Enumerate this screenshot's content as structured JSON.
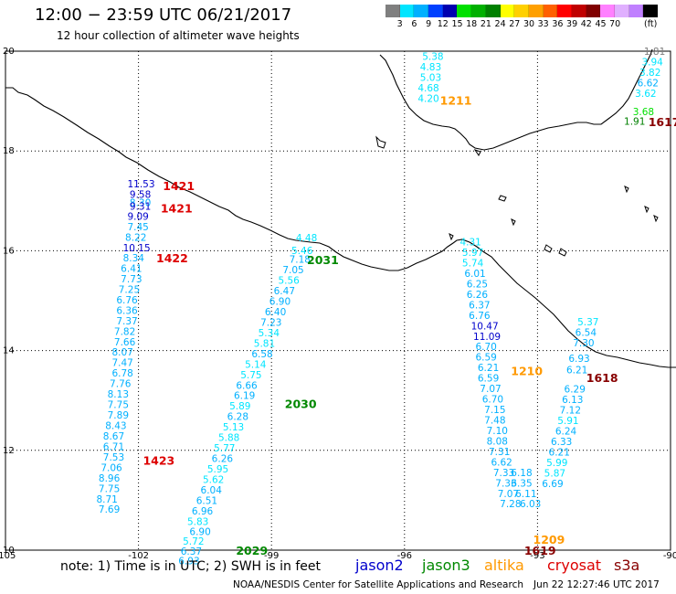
{
  "header": {
    "title": "12:00 − 23:59 UTC 06/21/2017",
    "subtitle": "12 hour collection of altimeter wave heights"
  },
  "legend": {
    "unit_label": "(ft)",
    "colors": [
      "#7f7f7f",
      "#00e5ff",
      "#00b0ff",
      "#0040ff",
      "#0000b0",
      "#00e000",
      "#00b000",
      "#008000",
      "#ffff00",
      "#ffd000",
      "#ffa000",
      "#ff6000",
      "#ff0000",
      "#c00000",
      "#800000",
      "#ff80ff",
      "#e0b0ff",
      "#c080ff",
      "#000000"
    ],
    "labels": [
      "3",
      "6",
      "9",
      "12",
      "15",
      "18",
      "21",
      "24",
      "27",
      "30",
      "33",
      "36",
      "39",
      "42",
      "45",
      "70"
    ]
  },
  "axes": {
    "x_ticks": [
      "-105",
      "-102",
      "-99",
      "-96",
      "-93",
      "-90"
    ],
    "y_ticks": [
      "20",
      "18",
      "16",
      "14",
      "12",
      "10"
    ]
  },
  "satellites": [
    {
      "name": "jason2",
      "color": "#0000cc"
    },
    {
      "name": "jason3",
      "color": "#008800"
    },
    {
      "name": "altika",
      "color": "#ff9900"
    },
    {
      "name": "cryosat",
      "color": "#dd0000"
    },
    {
      "name": "s3a",
      "color": "#880000"
    }
  ],
  "note": "note: 1) Time is in UTC; 2) SWH is in feet",
  "credit": "NOAA/NESDIS Center for Satellite Applications and Research",
  "generated": "Jun 22 12:27:46 UTC 2017",
  "pass_labels": [
    {
      "text": "1421",
      "color": "#dd0000",
      "lon": -101.45,
      "lat": 17.31
    },
    {
      "text": "1421",
      "color": "#dd0000",
      "lon": -101.5,
      "lat": 16.86
    },
    {
      "text": "1422",
      "color": "#dd0000",
      "lon": -101.6,
      "lat": 15.86
    },
    {
      "text": "1423",
      "color": "#dd0000",
      "lon": -101.9,
      "lat": 11.8
    },
    {
      "text": "2031",
      "color": "#008800",
      "lon": -98.2,
      "lat": 15.82
    },
    {
      "text": "2030",
      "color": "#008800",
      "lon": -98.7,
      "lat": 12.94
    },
    {
      "text": "2029",
      "color": "#008800",
      "lon": -99.8,
      "lat": 10.0
    },
    {
      "text": "1211",
      "color": "#ff9900",
      "lon": -95.2,
      "lat": 19.02
    },
    {
      "text": "1210",
      "color": "#ff9900",
      "lon": -93.6,
      "lat": 13.6
    },
    {
      "text": "1209",
      "color": "#ff9900",
      "lon": -93.1,
      "lat": 10.22
    },
    {
      "text": "1619",
      "color": "#880000",
      "lon": -93.3,
      "lat": 10.0
    },
    {
      "text": "1617",
      "color": "#880000",
      "lon": -90.5,
      "lat": 18.59
    },
    {
      "text": "1618",
      "color": "#880000",
      "lon": -91.9,
      "lat": 13.46
    }
  ],
  "tracks": [
    {
      "points": [
        {
          "v": "11.53",
          "c": "#0000cc",
          "lon": -102.25,
          "lat": 17.34
        },
        {
          "v": "9.58",
          "c": "#0000cc",
          "lon": -102.2,
          "lat": 17.13
        },
        {
          "v": "8.30",
          "c": "#00b0ff",
          "lon": -102.2,
          "lat": 16.97
        },
        {
          "v": "9.31",
          "c": "#0000cc",
          "lon": -102.2,
          "lat": 16.9
        },
        {
          "v": "9.09",
          "c": "#0000cc",
          "lon": -102.25,
          "lat": 16.69
        },
        {
          "v": "7.45",
          "c": "#00b0ff",
          "lon": -102.25,
          "lat": 16.48
        },
        {
          "v": "8.22",
          "c": "#00b0ff",
          "lon": -102.3,
          "lat": 16.27
        },
        {
          "v": "10.15",
          "c": "#0000cc",
          "lon": -102.35,
          "lat": 16.06
        },
        {
          "v": "8.34",
          "c": "#00b0ff",
          "lon": -102.35,
          "lat": 15.86
        },
        {
          "v": "6.41",
          "c": "#00b0ff",
          "lon": -102.4,
          "lat": 15.65
        },
        {
          "v": "7.73",
          "c": "#00b0ff",
          "lon": -102.4,
          "lat": 15.44
        },
        {
          "v": "7.25",
          "c": "#00b0ff",
          "lon": -102.45,
          "lat": 15.23
        },
        {
          "v": "6.76",
          "c": "#00b0ff",
          "lon": -102.5,
          "lat": 15.02
        },
        {
          "v": "6.36",
          "c": "#00b0ff",
          "lon": -102.5,
          "lat": 14.81
        },
        {
          "v": "7.37",
          "c": "#00b0ff",
          "lon": -102.5,
          "lat": 14.6
        },
        {
          "v": "7.82",
          "c": "#00b0ff",
          "lon": -102.55,
          "lat": 14.39
        },
        {
          "v": "7.66",
          "c": "#00b0ff",
          "lon": -102.55,
          "lat": 14.18
        },
        {
          "v": "8.07",
          "c": "#00b0ff",
          "lon": -102.6,
          "lat": 13.97
        },
        {
          "v": "7.47",
          "c": "#00b0ff",
          "lon": -102.6,
          "lat": 13.76
        },
        {
          "v": "6.78",
          "c": "#00b0ff",
          "lon": -102.6,
          "lat": 13.55
        },
        {
          "v": "7.76",
          "c": "#00b0ff",
          "lon": -102.65,
          "lat": 13.34
        },
        {
          "v": "8.13",
          "c": "#00b0ff",
          "lon": -102.7,
          "lat": 13.13
        },
        {
          "v": "7.75",
          "c": "#00b0ff",
          "lon": -102.7,
          "lat": 12.92
        },
        {
          "v": "7.89",
          "c": "#00b0ff",
          "lon": -102.7,
          "lat": 12.71
        },
        {
          "v": "8.43",
          "c": "#00b0ff",
          "lon": -102.75,
          "lat": 12.5
        },
        {
          "v": "8.67",
          "c": "#00b0ff",
          "lon": -102.8,
          "lat": 12.29
        },
        {
          "v": "6.71",
          "c": "#00b0ff",
          "lon": -102.8,
          "lat": 12.08
        },
        {
          "v": "7.53",
          "c": "#00b0ff",
          "lon": -102.8,
          "lat": 11.87
        },
        {
          "v": "7.06",
          "c": "#00b0ff",
          "lon": -102.85,
          "lat": 11.66
        },
        {
          "v": "8.96",
          "c": "#00b0ff",
          "lon": -102.9,
          "lat": 11.45
        },
        {
          "v": "7.75",
          "c": "#00b0ff",
          "lon": -102.9,
          "lat": 11.24
        },
        {
          "v": "8.71",
          "c": "#00b0ff",
          "lon": -102.95,
          "lat": 11.03
        },
        {
          "v": "7.69",
          "c": "#00b0ff",
          "lon": -102.9,
          "lat": 10.82
        }
      ]
    },
    {
      "points": [
        {
          "v": "4.48",
          "c": "#00e5ff",
          "lon": -98.45,
          "lat": 16.26
        },
        {
          "v": "5.46",
          "c": "#00e5ff",
          "lon": -98.55,
          "lat": 16.01
        },
        {
          "v": "7.18",
          "c": "#00b0ff",
          "lon": -98.6,
          "lat": 15.83
        },
        {
          "v": "7.05",
          "c": "#00b0ff",
          "lon": -98.75,
          "lat": 15.62
        },
        {
          "v": "5.56",
          "c": "#00e5ff",
          "lon": -98.85,
          "lat": 15.41
        },
        {
          "v": "6.47",
          "c": "#00b0ff",
          "lon": -98.95,
          "lat": 15.2
        },
        {
          "v": "6.90",
          "c": "#00b0ff",
          "lon": -99.05,
          "lat": 14.99
        },
        {
          "v": "6.40",
          "c": "#00b0ff",
          "lon": -99.15,
          "lat": 14.78
        },
        {
          "v": "7.23",
          "c": "#00b0ff",
          "lon": -99.25,
          "lat": 14.57
        },
        {
          "v": "5.34",
          "c": "#00e5ff",
          "lon": -99.3,
          "lat": 14.36
        },
        {
          "v": "5.81",
          "c": "#00e5ff",
          "lon": -99.4,
          "lat": 14.15
        },
        {
          "v": "6.58",
          "c": "#00b0ff",
          "lon": -99.45,
          "lat": 13.94
        },
        {
          "v": "5.14",
          "c": "#00e5ff",
          "lon": -99.6,
          "lat": 13.73
        },
        {
          "v": "5.75",
          "c": "#00e5ff",
          "lon": -99.7,
          "lat": 13.52
        },
        {
          "v": "6.66",
          "c": "#00b0ff",
          "lon": -99.8,
          "lat": 13.31
        },
        {
          "v": "6.19",
          "c": "#00b0ff",
          "lon": -99.85,
          "lat": 13.1
        },
        {
          "v": "5.89",
          "c": "#00e5ff",
          "lon": -99.95,
          "lat": 12.89
        },
        {
          "v": "6.28",
          "c": "#00b0ff",
          "lon": -100.0,
          "lat": 12.68
        },
        {
          "v": "5.13",
          "c": "#00e5ff",
          "lon": -100.1,
          "lat": 12.47
        },
        {
          "v": "5.88",
          "c": "#00e5ff",
          "lon": -100.2,
          "lat": 12.26
        },
        {
          "v": "5.77",
          "c": "#00e5ff",
          "lon": -100.3,
          "lat": 12.05
        },
        {
          "v": "6.26",
          "c": "#00b0ff",
          "lon": -100.35,
          "lat": 11.84
        },
        {
          "v": "5.95",
          "c": "#00e5ff",
          "lon": -100.45,
          "lat": 11.63
        },
        {
          "v": "5.62",
          "c": "#00e5ff",
          "lon": -100.55,
          "lat": 11.42
        },
        {
          "v": "6.04",
          "c": "#00b0ff",
          "lon": -100.6,
          "lat": 11.21
        },
        {
          "v": "6.51",
          "c": "#00b0ff",
          "lon": -100.7,
          "lat": 11.0
        },
        {
          "v": "6.96",
          "c": "#00b0ff",
          "lon": -100.8,
          "lat": 10.79
        },
        {
          "v": "5.83",
          "c": "#00e5ff",
          "lon": -100.9,
          "lat": 10.58
        },
        {
          "v": "6.90",
          "c": "#00b0ff",
          "lon": -100.85,
          "lat": 10.38
        },
        {
          "v": "5.72",
          "c": "#00e5ff",
          "lon": -101.0,
          "lat": 10.18
        },
        {
          "v": "6.37",
          "c": "#00b0ff",
          "lon": -101.05,
          "lat": 9.98
        },
        {
          "v": "6.93",
          "c": "#00b0ff",
          "lon": -101.1,
          "lat": 9.79
        }
      ]
    },
    {
      "points": [
        {
          "v": "5.38",
          "c": "#00e5ff",
          "lon": -95.6,
          "lat": 19.9
        },
        {
          "v": "4.83",
          "c": "#00e5ff",
          "lon": -95.65,
          "lat": 19.69
        },
        {
          "v": "5.03",
          "c": "#00e5ff",
          "lon": -95.65,
          "lat": 19.48
        },
        {
          "v": "4.68",
          "c": "#00e5ff",
          "lon": -95.7,
          "lat": 19.27
        },
        {
          "v": "4.20",
          "c": "#00e5ff",
          "lon": -95.7,
          "lat": 19.06
        }
      ]
    },
    {
      "points": [
        {
          "v": "4.31",
          "c": "#00e5ff",
          "lon": -94.75,
          "lat": 16.18
        },
        {
          "v": "5.97",
          "c": "#00e5ff",
          "lon": -94.7,
          "lat": 15.97
        },
        {
          "v": "5.74",
          "c": "#00e5ff",
          "lon": -94.7,
          "lat": 15.76
        },
        {
          "v": "6.01",
          "c": "#00b0ff",
          "lon": -94.65,
          "lat": 15.55
        },
        {
          "v": "6.25",
          "c": "#00b0ff",
          "lon": -94.6,
          "lat": 15.34
        },
        {
          "v": "6.26",
          "c": "#00b0ff",
          "lon": -94.6,
          "lat": 15.13
        },
        {
          "v": "6.37",
          "c": "#00b0ff",
          "lon": -94.55,
          "lat": 14.92
        },
        {
          "v": "6.76",
          "c": "#00b0ff",
          "lon": -94.55,
          "lat": 14.71
        },
        {
          "v": "10.47",
          "c": "#0000cc",
          "lon": -94.5,
          "lat": 14.5
        },
        {
          "v": "11.09",
          "c": "#0000cc",
          "lon": -94.45,
          "lat": 14.29
        },
        {
          "v": "6.70",
          "c": "#00b0ff",
          "lon": -94.4,
          "lat": 14.08
        },
        {
          "v": "6.59",
          "c": "#00b0ff",
          "lon": -94.4,
          "lat": 13.87
        },
        {
          "v": "6.21",
          "c": "#00b0ff",
          "lon": -94.35,
          "lat": 13.66
        },
        {
          "v": "6.59",
          "c": "#00b0ff",
          "lon": -94.35,
          "lat": 13.45
        },
        {
          "v": "7.07",
          "c": "#00b0ff",
          "lon": -94.3,
          "lat": 13.24
        },
        {
          "v": "6.70",
          "c": "#00b0ff",
          "lon": -94.25,
          "lat": 13.03
        },
        {
          "v": "7.15",
          "c": "#00b0ff",
          "lon": -94.2,
          "lat": 12.82
        },
        {
          "v": "7.48",
          "c": "#00b0ff",
          "lon": -94.2,
          "lat": 12.61
        },
        {
          "v": "7.10",
          "c": "#00b0ff",
          "lon": -94.15,
          "lat": 12.4
        },
        {
          "v": "8.08",
          "c": "#00b0ff",
          "lon": -94.15,
          "lat": 12.19
        },
        {
          "v": "7.31",
          "c": "#00b0ff",
          "lon": -94.1,
          "lat": 11.98
        },
        {
          "v": "6.62",
          "c": "#00b0ff",
          "lon": -94.05,
          "lat": 11.77
        },
        {
          "v": "7.33",
          "c": "#00b0ff",
          "lon": -94.0,
          "lat": 11.56
        },
        {
          "v": "7.33",
          "c": "#00b0ff",
          "lon": -93.95,
          "lat": 11.35
        },
        {
          "v": "7.07",
          "c": "#00b0ff",
          "lon": -93.9,
          "lat": 11.14
        },
        {
          "v": "7.28",
          "c": "#00b0ff",
          "lon": -93.85,
          "lat": 10.93
        }
      ]
    },
    {
      "points": [
        {
          "v": "6.18",
          "c": "#00b0ff",
          "lon": -93.6,
          "lat": 11.56
        },
        {
          "v": "6.35",
          "c": "#00b0ff",
          "lon": -93.6,
          "lat": 11.35
        },
        {
          "v": "6.11",
          "c": "#00b0ff",
          "lon": -93.5,
          "lat": 11.14
        },
        {
          "v": "6.03",
          "c": "#00b0ff",
          "lon": -93.4,
          "lat": 10.93
        }
      ]
    },
    {
      "points": [
        {
          "v": "5.37",
          "c": "#00e5ff",
          "lon": -92.1,
          "lat": 14.58
        },
        {
          "v": "6.54",
          "c": "#00b0ff",
          "lon": -92.15,
          "lat": 14.37
        },
        {
          "v": "7.30",
          "c": "#00b0ff",
          "lon": -92.2,
          "lat": 14.16
        },
        {
          "v": "6.93",
          "c": "#00b0ff",
          "lon": -92.3,
          "lat": 13.85
        },
        {
          "v": "6.21",
          "c": "#00b0ff",
          "lon": -92.35,
          "lat": 13.62
        },
        {
          "v": "6.29",
          "c": "#00b0ff",
          "lon": -92.4,
          "lat": 13.23
        },
        {
          "v": "6.13",
          "c": "#00b0ff",
          "lon": -92.45,
          "lat": 13.02
        },
        {
          "v": "7.12",
          "c": "#00b0ff",
          "lon": -92.5,
          "lat": 12.81
        },
        {
          "v": "5.91",
          "c": "#00e5ff",
          "lon": -92.55,
          "lat": 12.6
        },
        {
          "v": "6.24",
          "c": "#00b0ff",
          "lon": -92.6,
          "lat": 12.39
        },
        {
          "v": "6.33",
          "c": "#00b0ff",
          "lon": -92.7,
          "lat": 12.18
        },
        {
          "v": "6.21",
          "c": "#00b0ff",
          "lon": -92.75,
          "lat": 11.97
        },
        {
          "v": "5.99",
          "c": "#00e5ff",
          "lon": -92.8,
          "lat": 11.76
        },
        {
          "v": "5.87",
          "c": "#00e5ff",
          "lon": -92.85,
          "lat": 11.55
        },
        {
          "v": "6.69",
          "c": "#00b0ff",
          "lon": -92.9,
          "lat": 11.34
        }
      ]
    },
    {
      "points": [
        {
          "v": "1.81",
          "c": "#7f7f7f",
          "lon": -90.6,
          "lat": 20.0
        },
        {
          "v": "3.94",
          "c": "#00e5ff",
          "lon": -90.65,
          "lat": 19.79
        },
        {
          "v": "3.82",
          "c": "#00e5ff",
          "lon": -90.7,
          "lat": 19.58
        },
        {
          "v": "6.62",
          "c": "#00b0ff",
          "lon": -90.75,
          "lat": 19.37
        },
        {
          "v": "3.62",
          "c": "#00e5ff",
          "lon": -90.8,
          "lat": 19.16
        },
        {
          "v": "3.68",
          "c": "#00e000",
          "lon": -90.85,
          "lat": 18.79
        },
        {
          "v": "1.91",
          "c": "#008000",
          "lon": -91.05,
          "lat": 18.6
        }
      ]
    }
  ]
}
